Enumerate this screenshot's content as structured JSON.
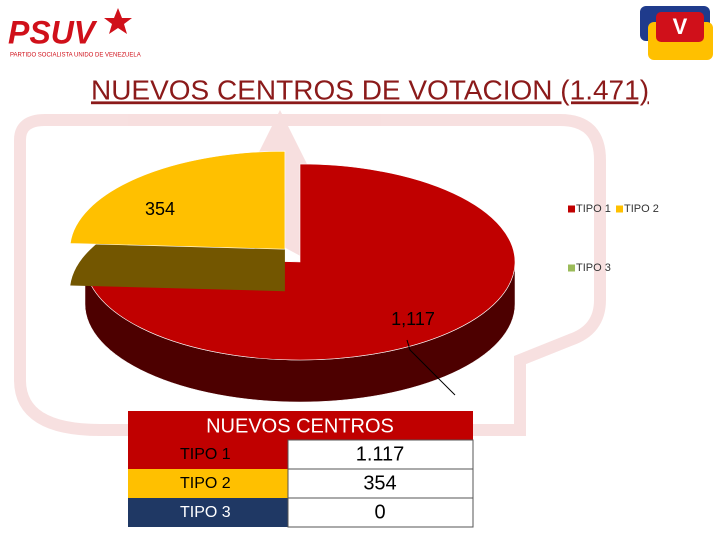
{
  "logo": {
    "name": "PSUV",
    "tagline": "PARTIDO SOCIALISTA UNIDO DE VENEZUELA"
  },
  "chart_data": {
    "type": "pie",
    "title": "NUEVOS CENTROS DE VOTACION (1.471)",
    "categories": [
      "TIPO 1",
      "TIPO 2",
      "TIPO 3"
    ],
    "values": [
      1117,
      354,
      0
    ],
    "value_labels": [
      "1,117",
      "354",
      null
    ],
    "colors": [
      "#c00000",
      "#ffc000",
      "#9bbb59"
    ],
    "legend": "right"
  },
  "table": {
    "header": "NUEVOS CENTROS",
    "rows": [
      [
        "TIPO 1",
        "1.117"
      ],
      [
        "TIPO 2",
        "354"
      ],
      [
        "TIPO 3",
        "0"
      ]
    ]
  }
}
